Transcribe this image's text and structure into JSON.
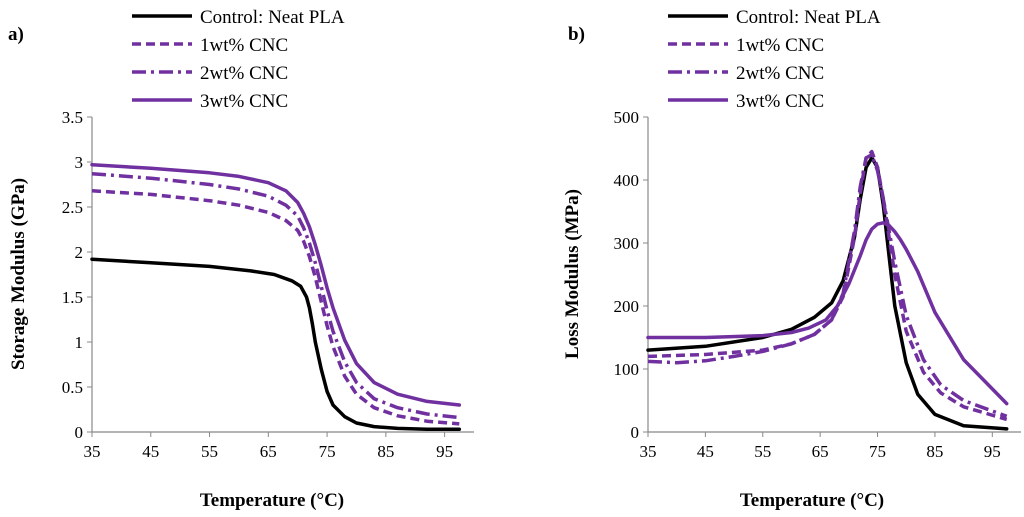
{
  "colors": {
    "control": "#000000",
    "cnc": "#7030a0"
  },
  "chart_data": [
    {
      "type": "line",
      "panel_label": "a)",
      "xlabel": "Temperature (°C)",
      "ylabel": "Storage Modulus (GPa)",
      "xlim": [
        35,
        100
      ],
      "ylim": [
        0,
        3.5
      ],
      "xticks": [
        "35",
        "45",
        "55",
        "65",
        "75",
        "85",
        "95"
      ],
      "yticks": [
        "0",
        "0.5",
        "1",
        "1.5",
        "2",
        "2.5",
        "3",
        "3.5"
      ],
      "legend": [
        "Control: Neat PLA",
        "1wt% CNC",
        "2wt% CNC",
        "3wt% CNC"
      ],
      "series": [
        {
          "name": "Control: Neat PLA",
          "style": "solid-black",
          "x": [
            35,
            45,
            55,
            62,
            66,
            69,
            70.5,
            71.5,
            72,
            72.5,
            73,
            74,
            75,
            76,
            78,
            80,
            83,
            87,
            92,
            97.5
          ],
          "y": [
            1.92,
            1.88,
            1.84,
            1.79,
            1.75,
            1.68,
            1.62,
            1.5,
            1.38,
            1.2,
            1.0,
            0.7,
            0.45,
            0.3,
            0.17,
            0.1,
            0.06,
            0.04,
            0.03,
            0.03
          ]
        },
        {
          "name": "1wt% CNC",
          "style": "dash",
          "x": [
            35,
            45,
            55,
            60,
            65,
            68,
            70,
            71,
            72,
            73,
            74,
            75,
            76,
            78,
            80,
            83,
            87,
            92,
            97.5
          ],
          "y": [
            2.68,
            2.64,
            2.57,
            2.52,
            2.44,
            2.35,
            2.24,
            2.12,
            1.95,
            1.72,
            1.45,
            1.18,
            0.95,
            0.62,
            0.42,
            0.27,
            0.18,
            0.12,
            0.09
          ]
        },
        {
          "name": "2wt% CNC",
          "style": "dashdot",
          "x": [
            35,
            45,
            55,
            60,
            65,
            68,
            70,
            71,
            72,
            73,
            74,
            75,
            76,
            78,
            80,
            83,
            87,
            92,
            97.5
          ],
          "y": [
            2.87,
            2.82,
            2.75,
            2.7,
            2.62,
            2.52,
            2.4,
            2.27,
            2.1,
            1.88,
            1.62,
            1.35,
            1.12,
            0.78,
            0.55,
            0.37,
            0.27,
            0.2,
            0.16
          ]
        },
        {
          "name": "3wt% CNC",
          "style": "solid-purple",
          "x": [
            35,
            45,
            55,
            60,
            65,
            68,
            70,
            71,
            72,
            73,
            74,
            75,
            76,
            78,
            80,
            83,
            87,
            92,
            97.5
          ],
          "y": [
            2.97,
            2.93,
            2.88,
            2.84,
            2.77,
            2.68,
            2.55,
            2.43,
            2.28,
            2.08,
            1.85,
            1.6,
            1.38,
            1.02,
            0.76,
            0.55,
            0.42,
            0.34,
            0.3
          ]
        }
      ]
    },
    {
      "type": "line",
      "panel_label": "b)",
      "xlabel": "Temperature (°C)",
      "ylabel": "Loss Modulus (MPa)",
      "xlim": [
        35,
        100
      ],
      "ylim": [
        0,
        500
      ],
      "xticks": [
        "35",
        "45",
        "55",
        "65",
        "75",
        "85",
        "95"
      ],
      "yticks": [
        "0",
        "100",
        "200",
        "300",
        "400",
        "500"
      ],
      "legend": [
        "Control: Neat PLA",
        "1wt% CNC",
        "2wt% CNC",
        "3wt% CNC"
      ],
      "series": [
        {
          "name": "Control: Neat PLA",
          "style": "solid-black",
          "x": [
            35,
            45,
            55,
            60,
            64,
            67,
            69,
            71,
            72,
            73,
            74,
            75,
            76,
            77,
            78,
            80,
            82,
            85,
            90,
            97.5
          ],
          "y": [
            130,
            136,
            150,
            163,
            182,
            205,
            240,
            310,
            370,
            420,
            435,
            420,
            360,
            280,
            200,
            110,
            60,
            28,
            10,
            5
          ]
        },
        {
          "name": "1wt% CNC",
          "style": "dash",
          "x": [
            35,
            45,
            55,
            60,
            64,
            67,
            69,
            71,
            72,
            73,
            74,
            75,
            76,
            77,
            78,
            80,
            83,
            86,
            90,
            97.5
          ],
          "y": [
            120,
            123,
            130,
            140,
            155,
            178,
            215,
            310,
            380,
            435,
            445,
            420,
            370,
            310,
            250,
            160,
            95,
            62,
            40,
            20
          ]
        },
        {
          "name": "2wt% CNC",
          "style": "dashdot",
          "x": [
            35,
            40,
            45,
            50,
            55,
            60,
            64,
            67,
            69,
            71,
            72,
            73,
            74,
            75,
            76,
            77,
            78,
            80,
            83,
            86,
            90,
            97.5
          ],
          "y": [
            112,
            110,
            113,
            120,
            128,
            140,
            155,
            178,
            220,
            320,
            390,
            435,
            440,
            415,
            370,
            320,
            270,
            185,
            115,
            75,
            50,
            25
          ]
        },
        {
          "name": "3wt% CNC",
          "style": "solid-purple",
          "x": [
            35,
            45,
            55,
            60,
            63,
            66,
            68,
            70,
            72,
            73,
            74,
            75,
            76,
            77,
            78,
            79,
            80,
            82,
            85,
            90,
            97.5
          ],
          "y": [
            150,
            150,
            153,
            158,
            165,
            178,
            200,
            235,
            280,
            305,
            322,
            330,
            332,
            328,
            318,
            305,
            290,
            255,
            190,
            115,
            45
          ]
        }
      ]
    }
  ]
}
